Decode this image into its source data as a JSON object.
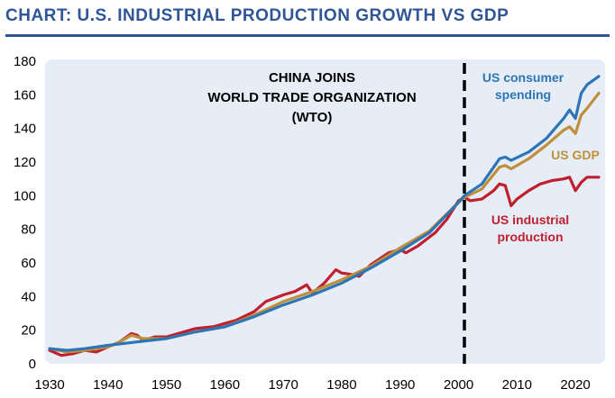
{
  "page_title": "CHART: U.S. INDUSTRIAL PRODUCTION GROWTH VS GDP",
  "chart_data": {
    "type": "line",
    "title": "CHART: U.S. INDUSTRIAL PRODUCTION GROWTH VS GDP",
    "xlabel": "",
    "ylabel": "",
    "xlim": [
      1930,
      2024
    ],
    "ylim": [
      0,
      180
    ],
    "x_ticks": [
      1930,
      1940,
      1950,
      1960,
      1970,
      1980,
      1990,
      2000,
      2010,
      2020
    ],
    "y_ticks": [
      0,
      20,
      40,
      60,
      80,
      100,
      120,
      140,
      160,
      180
    ],
    "grid": false,
    "background": "#e6edf6",
    "vertical_marker": {
      "x": 2001,
      "style": "dashed",
      "color": "#000000"
    },
    "annotation": {
      "lines": [
        "CHINA JOINS",
        "WORLD TRADE ORGANIZATION",
        "(WTO)"
      ]
    },
    "series": [
      {
        "name": "US industrial production",
        "label_lines": [
          "US industrial",
          "production"
        ],
        "color": "#c0202e",
        "points": [
          [
            1930,
            8
          ],
          [
            1932,
            5
          ],
          [
            1934,
            6
          ],
          [
            1936,
            8
          ],
          [
            1938,
            7
          ],
          [
            1940,
            10
          ],
          [
            1942,
            13
          ],
          [
            1944,
            18
          ],
          [
            1945,
            17
          ],
          [
            1946,
            14
          ],
          [
            1948,
            16
          ],
          [
            1950,
            16
          ],
          [
            1953,
            19
          ],
          [
            1955,
            21
          ],
          [
            1958,
            22
          ],
          [
            1960,
            24
          ],
          [
            1962,
            26
          ],
          [
            1965,
            31
          ],
          [
            1967,
            37
          ],
          [
            1970,
            41
          ],
          [
            1972,
            43
          ],
          [
            1974,
            47
          ],
          [
            1975,
            42
          ],
          [
            1977,
            48
          ],
          [
            1979,
            56
          ],
          [
            1980,
            54
          ],
          [
            1982,
            53
          ],
          [
            1983,
            52
          ],
          [
            1985,
            59
          ],
          [
            1988,
            66
          ],
          [
            1990,
            68
          ],
          [
            1991,
            66
          ],
          [
            1993,
            70
          ],
          [
            1996,
            78
          ],
          [
            1998,
            86
          ],
          [
            2000,
            97
          ],
          [
            2001,
            99
          ],
          [
            2002,
            97
          ],
          [
            2004,
            98
          ],
          [
            2006,
            103
          ],
          [
            2007,
            107
          ],
          [
            2008,
            106
          ],
          [
            2009,
            94
          ],
          [
            2010,
            98
          ],
          [
            2012,
            103
          ],
          [
            2014,
            107
          ],
          [
            2016,
            109
          ],
          [
            2018,
            110
          ],
          [
            2019,
            111
          ],
          [
            2020,
            103
          ],
          [
            2021,
            108
          ],
          [
            2022,
            111
          ],
          [
            2024,
            111
          ]
        ]
      },
      {
        "name": "US GDP",
        "label_lines": [
          "US GDP"
        ],
        "color": "#bf8f3b",
        "points": [
          [
            1930,
            9
          ],
          [
            1933,
            7
          ],
          [
            1936,
            8
          ],
          [
            1940,
            10
          ],
          [
            1942,
            13
          ],
          [
            1944,
            17
          ],
          [
            1946,
            15
          ],
          [
            1950,
            15
          ],
          [
            1955,
            19
          ],
          [
            1960,
            22
          ],
          [
            1965,
            29
          ],
          [
            1970,
            37
          ],
          [
            1975,
            43
          ],
          [
            1980,
            50
          ],
          [
            1985,
            58
          ],
          [
            1990,
            69
          ],
          [
            1995,
            79
          ],
          [
            2000,
            96
          ],
          [
            2001,
            99
          ],
          [
            2004,
            104
          ],
          [
            2007,
            117
          ],
          [
            2008,
            118
          ],
          [
            2009,
            116
          ],
          [
            2012,
            122
          ],
          [
            2015,
            130
          ],
          [
            2018,
            139
          ],
          [
            2019,
            141
          ],
          [
            2020,
            137
          ],
          [
            2021,
            148
          ],
          [
            2022,
            152
          ],
          [
            2024,
            161
          ]
        ]
      },
      {
        "name": "US consumer spending",
        "label_lines": [
          "US consumer",
          "spending"
        ],
        "color": "#2e75b6",
        "points": [
          [
            1930,
            9
          ],
          [
            1933,
            8
          ],
          [
            1936,
            9
          ],
          [
            1940,
            11
          ],
          [
            1945,
            13
          ],
          [
            1950,
            15
          ],
          [
            1955,
            19
          ],
          [
            1960,
            22
          ],
          [
            1965,
            28
          ],
          [
            1970,
            35
          ],
          [
            1975,
            41
          ],
          [
            1980,
            48
          ],
          [
            1985,
            57
          ],
          [
            1990,
            67
          ],
          [
            1995,
            78
          ],
          [
            2000,
            96
          ],
          [
            2001,
            100
          ],
          [
            2004,
            107
          ],
          [
            2007,
            122
          ],
          [
            2008,
            123
          ],
          [
            2009,
            121
          ],
          [
            2012,
            126
          ],
          [
            2015,
            134
          ],
          [
            2018,
            146
          ],
          [
            2019,
            151
          ],
          [
            2020,
            146
          ],
          [
            2021,
            161
          ],
          [
            2022,
            166
          ],
          [
            2024,
            171
          ]
        ]
      }
    ]
  }
}
